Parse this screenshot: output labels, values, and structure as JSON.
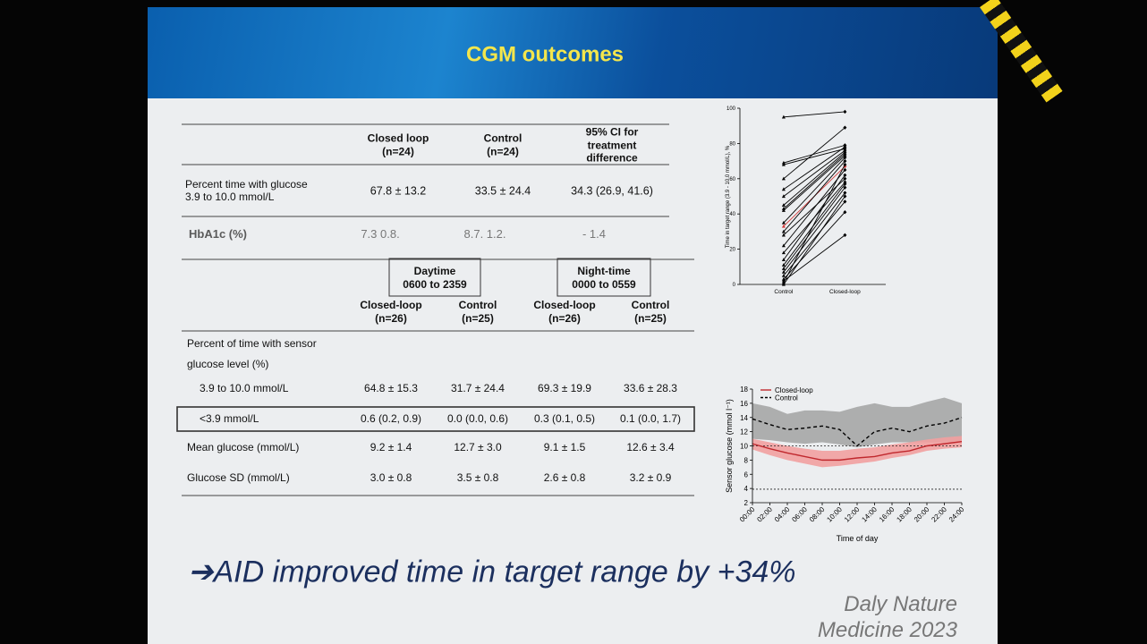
{
  "header": {
    "title": "CGM outcomes"
  },
  "table1": {
    "columns": [
      "Closed loop\n(n=24)",
      "Control\n(n=24)",
      "95% CI for\ntreatment\ndifference"
    ],
    "rows": [
      [
        "Percent time with glucose\n3.9 to 10.0 mmol/L",
        "67.8 ± 13.2",
        "33.5 ± 24.4",
        "34.3 (26.9, 41.6)"
      ],
      [
        "HbA1c (%)",
        "7.3 0.8.",
        "8.7. 1.2.",
        "- 1.4"
      ]
    ]
  },
  "table2": {
    "groups": [
      "Daytime\n0600 to 2359",
      "Night-time\n0000 to 0559"
    ],
    "columns": [
      "Closed-loop\n(n=26)",
      "Control\n(n=25)",
      "Closed-loop\n(n=26)",
      "Control\n(n=25)"
    ],
    "section": "Percent of time with sensor\nglucose level (%)",
    "rows": [
      [
        "3.9 to 10.0 mmol/L",
        "64.8 ± 15.3",
        "31.7 ± 24.4",
        "69.3 ± 19.9",
        "33.6 ± 28.3"
      ],
      [
        "<3.9 mmol/L",
        "0.6 (0.2, 0.9)",
        "0.0 (0.0, 0.6)",
        "0.3 (0.1, 0.5)",
        "0.1 (0.0, 1.7)"
      ],
      [
        "Mean glucose (mmol/L)",
        "9.2 ± 1.4",
        "12.7 ± 3.0",
        "9.1 ± 1.5",
        "12.6 ± 3.4"
      ],
      [
        "Glucose SD (mmol/L)",
        "3.0 ± 0.8",
        "3.5 ± 0.8",
        "2.6 ± 0.8",
        "3.2 ± 0.9"
      ]
    ]
  },
  "conclusion": "➔AID improved time in target range by +34%",
  "citation": "Daly Nature Medicine 2023",
  "chart_data": [
    {
      "type": "paired-line",
      "ylabel": "Time in target range (3.9 - 10.0 mmol/L), %",
      "categories": [
        "Control",
        "Closed-loop"
      ],
      "ylim": [
        0,
        100
      ],
      "yticks": [
        0,
        20,
        40,
        60,
        80,
        100
      ],
      "series": [
        {
          "color": "#000000",
          "values": [
            95,
            98
          ]
        },
        {
          "color": "#000000",
          "values": [
            69,
            79
          ]
        },
        {
          "color": "#000000",
          "values": [
            68,
            77
          ]
        },
        {
          "color": "#000000",
          "values": [
            60,
            89
          ]
        },
        {
          "color": "#000000",
          "values": [
            54,
            78
          ]
        },
        {
          "color": "#000000",
          "values": [
            50,
            76
          ]
        },
        {
          "color": "#000000",
          "values": [
            45,
            75
          ]
        },
        {
          "color": "#000000",
          "values": [
            43,
            74
          ]
        },
        {
          "color": "#000000",
          "values": [
            42,
            73
          ]
        },
        {
          "color": "#000000",
          "values": [
            35,
            72
          ]
        },
        {
          "color": "#d43a3a",
          "values": [
            33,
            67
          ]
        },
        {
          "color": "#000000",
          "values": [
            30,
            70
          ]
        },
        {
          "color": "#000000",
          "values": [
            28,
            60
          ]
        },
        {
          "color": "#000000",
          "values": [
            22,
            65
          ]
        },
        {
          "color": "#000000",
          "values": [
            18,
            58
          ]
        },
        {
          "color": "#000000",
          "values": [
            14,
            62
          ]
        },
        {
          "color": "#000000",
          "values": [
            11,
            57
          ]
        },
        {
          "color": "#000000",
          "values": [
            9,
            55
          ]
        },
        {
          "color": "#000000",
          "values": [
            7,
            52
          ]
        },
        {
          "color": "#000000",
          "values": [
            5,
            47
          ]
        },
        {
          "color": "#000000",
          "values": [
            3,
            41
          ]
        },
        {
          "color": "#000000",
          "values": [
            2,
            28
          ]
        },
        {
          "color": "#000000",
          "values": [
            1,
            68
          ]
        },
        {
          "color": "#000000",
          "values": [
            0,
            50
          ]
        }
      ]
    },
    {
      "type": "line",
      "xlabel": "Time of day",
      "ylabel": "Sensor glucose (mmol l⁻¹)",
      "x": [
        0,
        2,
        4,
        6,
        8,
        10,
        12,
        14,
        16,
        18,
        20,
        22,
        24
      ],
      "xlim": [
        0,
        24
      ],
      "xticks": [
        {
          "value": 0,
          "label": "00:00"
        },
        {
          "value": 2,
          "label": "02:00"
        },
        {
          "value": 4,
          "label": "04:00"
        },
        {
          "value": 6,
          "label": "06:00"
        },
        {
          "value": 8,
          "label": "08:00"
        },
        {
          "value": 10,
          "label": "10:00"
        },
        {
          "value": 12,
          "label": "12:00"
        },
        {
          "value": 14,
          "label": "14:00"
        },
        {
          "value": 16,
          "label": "16:00"
        },
        {
          "value": 18,
          "label": "18:00"
        },
        {
          "value": 20,
          "label": "20:00"
        },
        {
          "value": 22,
          "label": "22:00"
        },
        {
          "value": 24,
          "label": "24:00"
        }
      ],
      "ylim": [
        2,
        18
      ],
      "yticks": [
        2,
        4,
        6,
        8,
        10,
        12,
        14,
        16,
        18
      ],
      "reference_lines": [
        10,
        3.9
      ],
      "series": [
        {
          "name": "Control",
          "color": "#000000",
          "dash": true,
          "band_color": "#a6a6a6",
          "values": [
            13.8,
            13.0,
            12.3,
            12.5,
            12.8,
            12.3,
            10.0,
            12.0,
            12.5,
            12.0,
            12.8,
            13.2,
            14.0
          ],
          "band_lower": [
            11.0,
            10.8,
            10.5,
            10.3,
            10.5,
            10.2,
            9.8,
            10.2,
            10.5,
            10.5,
            10.5,
            10.5,
            10.6
          ],
          "band_upper": [
            16.0,
            15.5,
            14.5,
            15.0,
            15.0,
            14.8,
            15.5,
            16.0,
            15.5,
            15.5,
            16.2,
            16.8,
            16.0
          ]
        },
        {
          "name": "Closed-loop",
          "color": "#c0282d",
          "dash": false,
          "band_color": "#f2a0a0",
          "values": [
            10.3,
            9.6,
            9.0,
            8.5,
            8.0,
            8.0,
            8.3,
            8.5,
            9.0,
            9.3,
            10.0,
            10.3,
            10.6
          ],
          "band_lower": [
            9.5,
            8.7,
            8.0,
            7.5,
            7.0,
            7.2,
            7.5,
            7.8,
            8.3,
            8.7,
            9.3,
            9.6,
            9.8
          ],
          "band_upper": [
            11.0,
            10.5,
            10.0,
            9.6,
            9.3,
            9.3,
            9.6,
            9.8,
            10.2,
            10.5,
            10.9,
            11.2,
            11.4
          ]
        }
      ]
    }
  ]
}
